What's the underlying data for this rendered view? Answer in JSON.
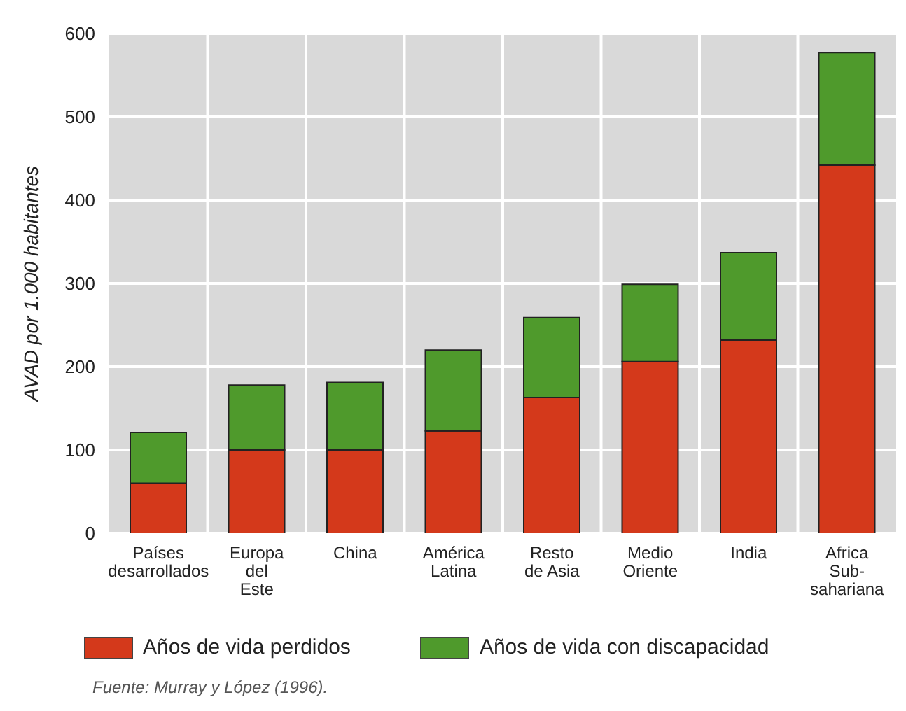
{
  "chart_data": {
    "type": "bar",
    "ylabel": "AVAD por 1.000 habitantes",
    "categories": [
      "Países\ndesarrollados",
      "Europa\ndel\nEste",
      "China",
      "América\nLatina",
      "Resto\nde Asia",
      "Medio\nOriente",
      "India",
      "Africa\nSub-\nsahariana"
    ],
    "series": [
      {
        "name": "Años de vida perdidos",
        "color": "#d4391b",
        "values": [
          60,
          100,
          100,
          123,
          163,
          206,
          232,
          442
        ]
      },
      {
        "name": "Años de vida con discapacidad",
        "color": "#4f9a2c",
        "values": [
          61,
          78,
          81,
          97,
          96,
          93,
          105,
          135
        ]
      }
    ],
    "stacked": true,
    "ylim": [
      0,
      600
    ],
    "yticks": [
      0,
      100,
      200,
      300,
      400,
      500,
      600
    ],
    "grid": true,
    "legend": "bottom",
    "annotations": [
      "Fuente: Murray y López (1996)."
    ]
  }
}
